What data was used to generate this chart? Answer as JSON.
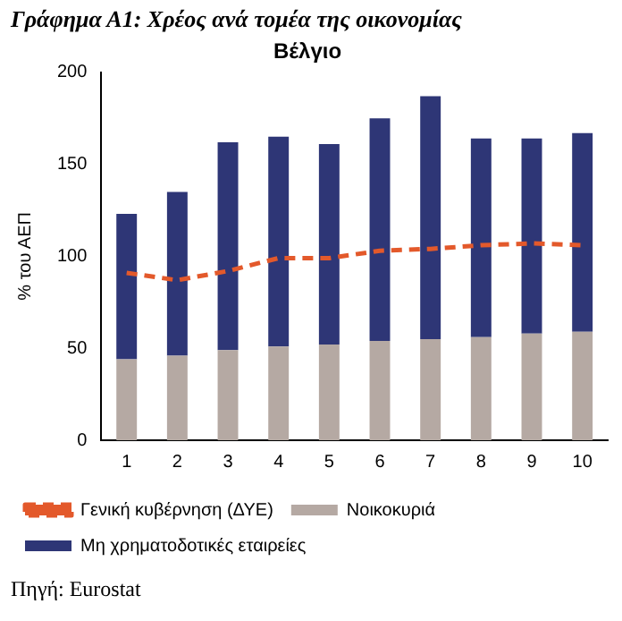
{
  "chart_data": {
    "type": "bar",
    "title": "Γράφημα Α1: Χρέος ανά τομέα της οικονομίας",
    "subtitle": "Βέλγιο",
    "ylabel": "% του ΑΕΠ",
    "categories": [
      "1",
      "2",
      "3",
      "4",
      "5",
      "6",
      "7",
      "8",
      "9",
      "10"
    ],
    "stacked": true,
    "series": [
      {
        "name": "Νοικοκυριά",
        "color": "#b5a9a3",
        "values": [
          44,
          46,
          49,
          51,
          52,
          54,
          55,
          56,
          58,
          59
        ]
      },
      {
        "name": "Μη χρηματοδοτικές εταιρείες",
        "color": "#2e3676",
        "values": [
          79,
          89,
          113,
          114,
          109,
          121,
          132,
          108,
          106,
          108
        ]
      },
      {
        "name": "Γενική κυβέρνηση (ΔΥΕ)",
        "type": "line",
        "color": "#e3592b",
        "line_style": "dashed",
        "values": [
          91,
          87,
          92,
          99,
          99,
          103,
          104,
          106,
          107,
          106
        ]
      }
    ],
    "ylim": [
      0,
      200
    ],
    "yticks": [
      0,
      50,
      100,
      150,
      200
    ],
    "grid": false,
    "legend": "bottom",
    "marker": "none",
    "annotations": [
      "Πηγή: Eurostat"
    ]
  }
}
